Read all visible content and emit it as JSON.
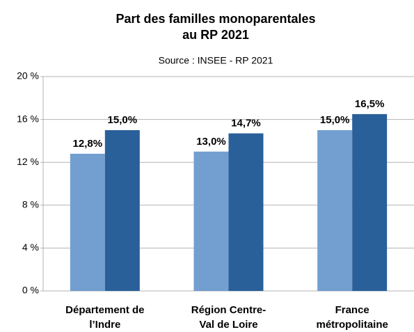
{
  "chart_data": {
    "type": "bar",
    "title": [
      "Part des familles monoparentales",
      "au RP 2021"
    ],
    "subtitle": "Source : INSEE - RP 2021",
    "categories": [
      [
        "Département de",
        "l’Indre"
      ],
      [
        "Région Centre-",
        "Val de Loire"
      ],
      [
        "France",
        "métropolitaine"
      ]
    ],
    "series": [
      {
        "color": "#729fcf",
        "values": [
          12.8,
          13.0,
          15.0
        ],
        "value_labels": [
          "12,8%",
          "13,0%",
          "15,0%"
        ]
      },
      {
        "color": "#2a6099",
        "values": [
          15.0,
          14.7,
          16.5
        ],
        "value_labels": [
          "15,0%",
          "14,7%",
          "16,5%"
        ]
      }
    ],
    "ylim": [
      0,
      20
    ],
    "yticks": [
      {
        "value": 0,
        "label": "0 %"
      },
      {
        "value": 4,
        "label": "4 %"
      },
      {
        "value": 8,
        "label": "8 %"
      },
      {
        "value": 12,
        "label": "12 %"
      },
      {
        "value": 16,
        "label": "16 %"
      },
      {
        "value": 20,
        "label": "20 %"
      }
    ],
    "grid": true
  }
}
